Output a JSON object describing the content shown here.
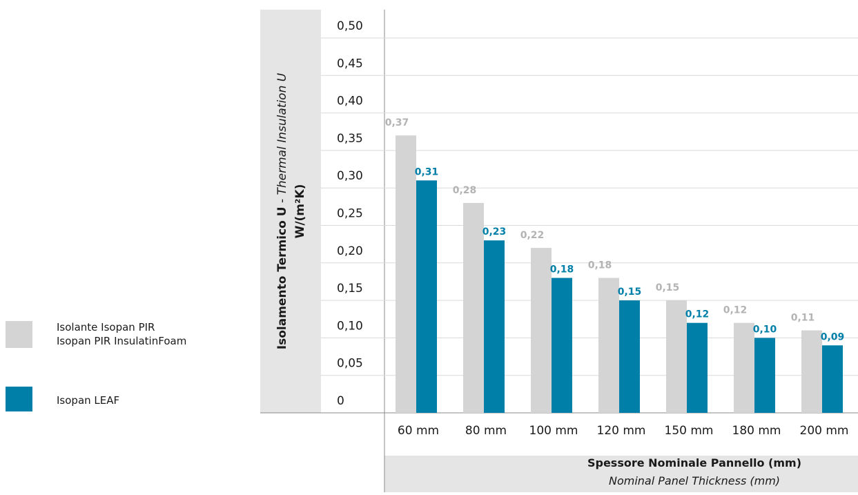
{
  "chart_data": {
    "type": "bar",
    "categories": [
      "60 mm",
      "80 mm",
      "100 mm",
      "120 mm",
      "150 mm",
      "180 mm",
      "200 mm"
    ],
    "series": [
      {
        "name": "Isolante Isopan PIR\nIsopan PIR InsulatinFoam",
        "name_line1": "Isolante Isopan PIR",
        "name_line2": "Isopan PIR InsulatinFoam",
        "color": "#d4d4d4",
        "label_color": "#b3b3b3",
        "values": [
          0.37,
          0.28,
          0.22,
          0.18,
          0.15,
          0.12,
          0.11
        ],
        "labels": [
          "0,37",
          "0,28",
          "0,22",
          "0,18",
          "0,15",
          "0,12",
          "0,11"
        ]
      },
      {
        "name": "Isopan LEAF",
        "color": "#007fa8",
        "label_color": "#007fa8",
        "values": [
          0.31,
          0.23,
          0.18,
          0.15,
          0.12,
          0.1,
          0.09
        ],
        "labels": [
          "0,31",
          "0,23",
          "0,18",
          "0,15",
          "0,12",
          "0,10",
          "0,09"
        ]
      }
    ],
    "ylim": [
      0,
      0.5
    ],
    "yticks": [
      "0",
      "0,05",
      "0,10",
      "0,15",
      "0,20",
      "0,25",
      "0,30",
      "0,35",
      "0,40",
      "0,45",
      "0,50"
    ],
    "ylabel_bold": "Isolamento Termico U",
    "ylabel_separator": " - ",
    "ylabel_italic": "Thermal Insulation U",
    "ylabel_unit": "W/(m²K)",
    "xlabel_bold": "Spessore Nominale Pannello (mm)",
    "xlabel_italic": "Nominal Panel Thickness (mm)",
    "grid": true,
    "legend_position": "left"
  }
}
